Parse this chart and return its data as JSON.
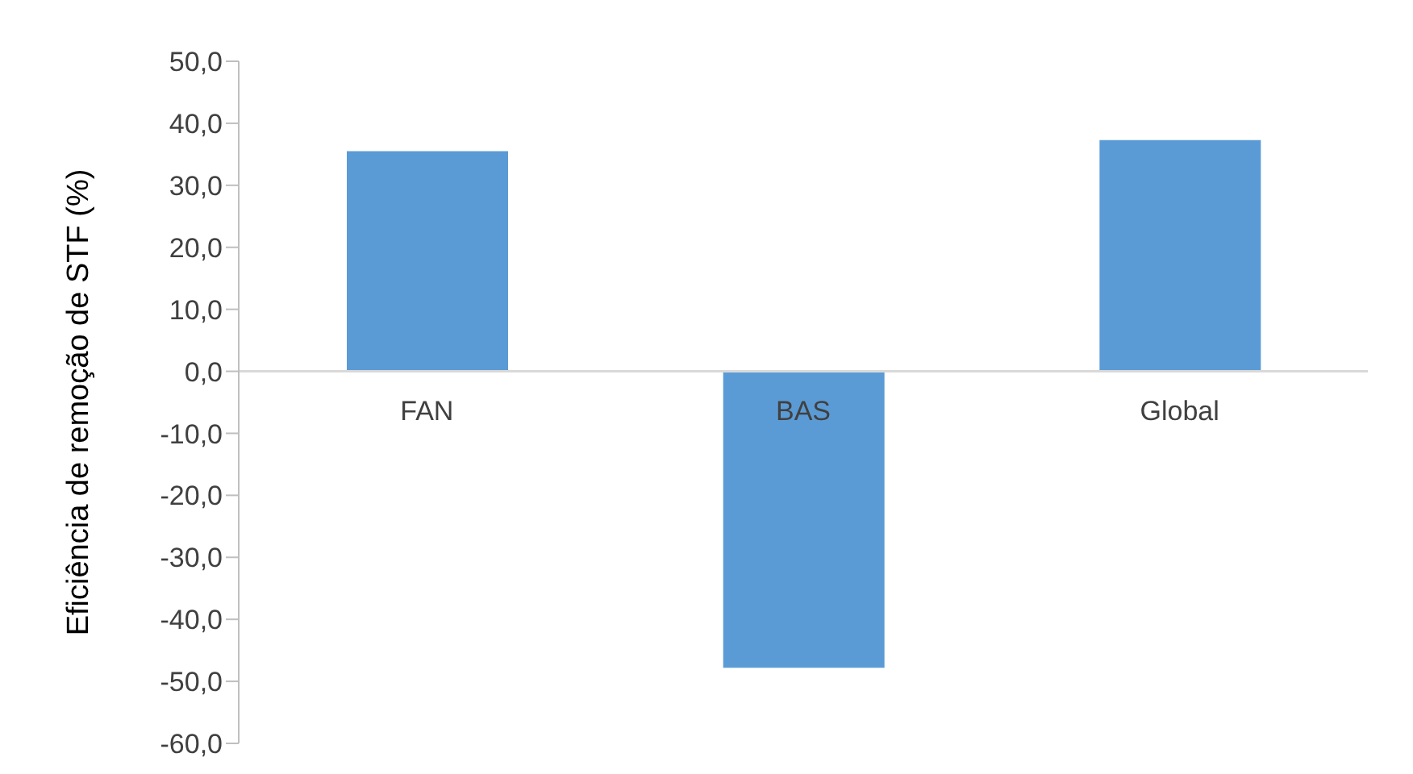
{
  "chart_data": {
    "type": "bar",
    "ylabel": "Eficiência de remoção de STF (%)",
    "categories": [
      "FAN",
      "BAS",
      "Global"
    ],
    "values": [
      35.5,
      -47.8,
      37.3
    ],
    "color": "#5b9bd5",
    "ylim": [
      -60,
      50
    ],
    "yticks": [
      {
        "value": 50,
        "label": "50,0"
      },
      {
        "value": 40,
        "label": "40,0"
      },
      {
        "value": 30,
        "label": "30,0"
      },
      {
        "value": 20,
        "label": "20,0"
      },
      {
        "value": 10,
        "label": "10,0"
      },
      {
        "value": 0,
        "label": "0,0"
      },
      {
        "value": -10,
        "label": "-10,0"
      },
      {
        "value": -20,
        "label": "-20,0"
      },
      {
        "value": -30,
        "label": "-30,0"
      },
      {
        "value": -40,
        "label": "-40,0"
      },
      {
        "value": -50,
        "label": "-50,0"
      },
      {
        "value": -60,
        "label": "-60,0"
      }
    ],
    "grid": false,
    "legend": false
  }
}
